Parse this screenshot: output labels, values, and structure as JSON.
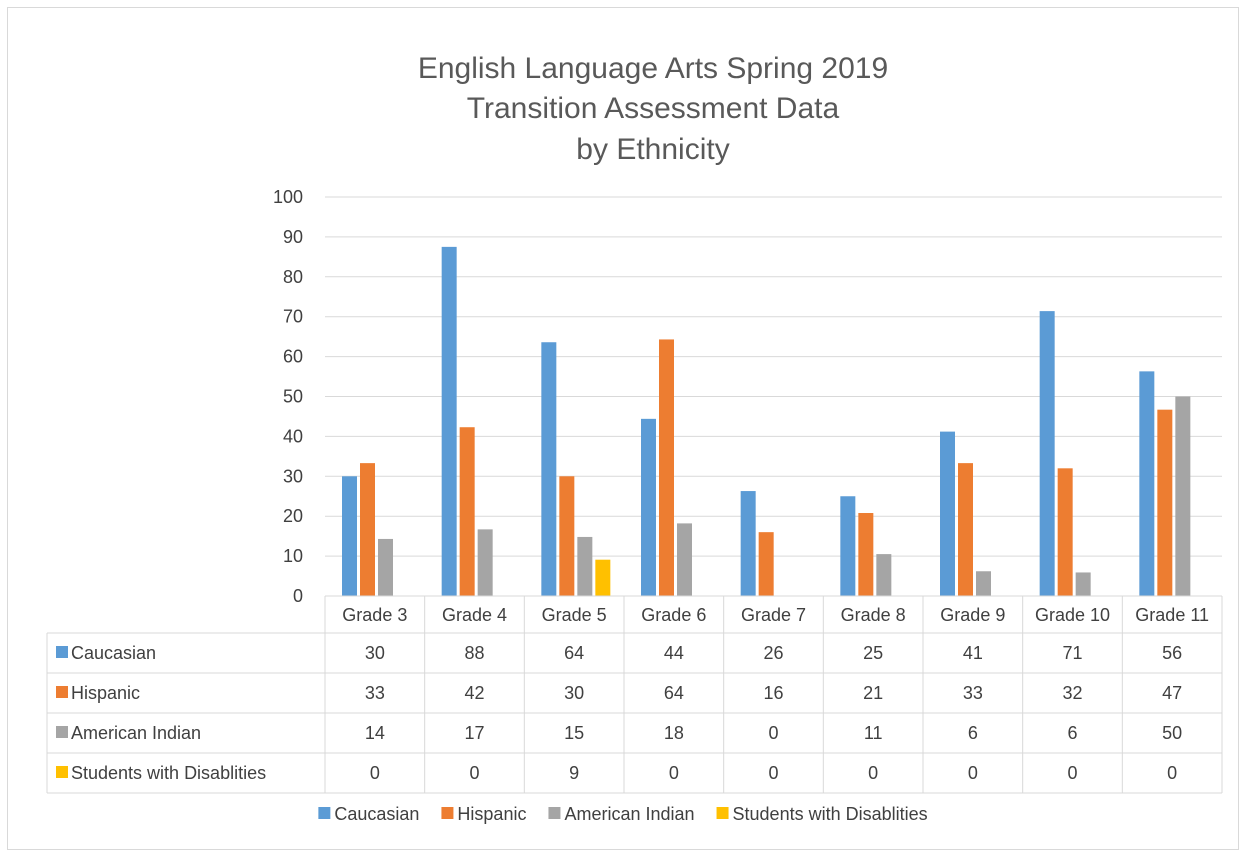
{
  "chart_data": {
    "type": "bar",
    "title": [
      "English Language Arts Spring 2019",
      "Transition Assessment Data",
      "by Ethnicity"
    ],
    "categories": [
      "Grade 3",
      "Grade 4",
      "Grade 5",
      "Grade 6",
      "Grade 7",
      "Grade 8",
      "Grade 9",
      "Grade 10",
      "Grade 11"
    ],
    "ylim": [
      0,
      100
    ],
    "yticks": [
      0,
      10,
      20,
      30,
      40,
      50,
      60,
      70,
      80,
      90,
      100
    ],
    "grid": true,
    "legend_position": "bottom",
    "data_table": true,
    "series": [
      {
        "name": "Caucasian",
        "color": "#5b9bd5",
        "values": [
          30.0,
          87.5,
          63.6,
          44.4,
          26.3,
          25.0,
          41.2,
          71.4,
          56.3
        ],
        "labels": [
          "30",
          "88",
          "64",
          "44",
          "26",
          "25",
          "41",
          "71",
          "56"
        ]
      },
      {
        "name": "Hispanic",
        "color": "#ed7d31",
        "values": [
          33.3,
          42.3,
          30.0,
          64.3,
          16.0,
          20.8,
          33.3,
          32.0,
          46.7
        ],
        "labels": [
          "33",
          "42",
          "30",
          "64",
          "16",
          "21",
          "33",
          "32",
          "47"
        ]
      },
      {
        "name": "American Indian",
        "color": "#a5a5a5",
        "values": [
          14.3,
          16.7,
          14.8,
          18.2,
          0,
          10.5,
          6.2,
          5.9,
          50.0
        ],
        "labels": [
          "14",
          "17",
          "15",
          "18",
          "0",
          "11",
          "6",
          "6",
          "50"
        ]
      },
      {
        "name": "Students with Disablities",
        "color": "#ffc000",
        "values": [
          0,
          0,
          9.1,
          0,
          0,
          0,
          0,
          0,
          0
        ],
        "labels": [
          "0",
          "0",
          "9",
          "0",
          "0",
          "0",
          "0",
          "0",
          "0"
        ]
      }
    ]
  }
}
